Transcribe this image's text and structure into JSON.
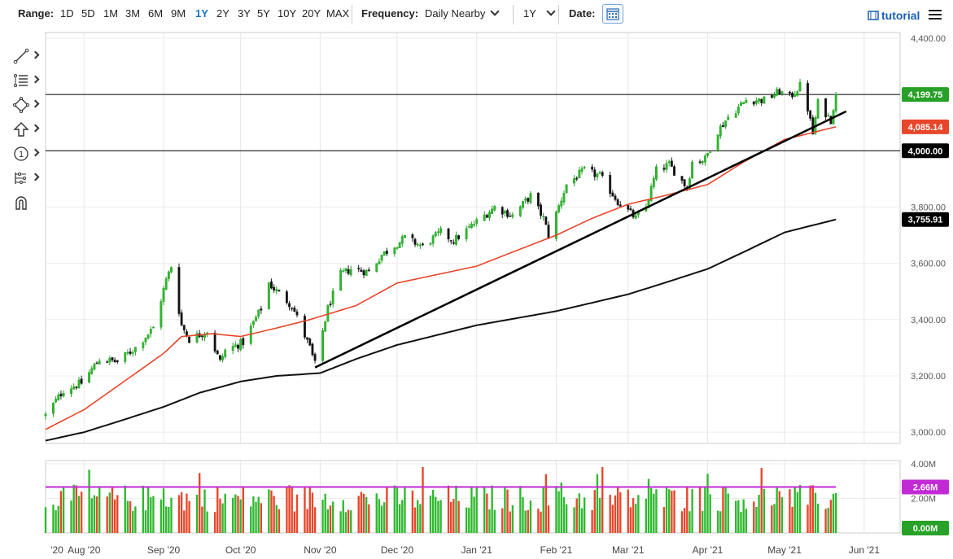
{
  "toolbar": {
    "range_label": "Range:",
    "ranges": [
      "1D",
      "5D",
      "1M",
      "3M",
      "6M",
      "9M",
      "1Y",
      "2Y",
      "3Y",
      "5Y",
      "10Y",
      "20Y",
      "MAX"
    ],
    "active_range": "1Y",
    "frequency_label": "Frequency:",
    "frequency_value": "Daily Nearby",
    "period_value": "1Y",
    "date_label": "Date:",
    "tutorial_label": "tutorial",
    "accent_color": "#1a73c8"
  },
  "tools": [
    "trend-line-icon",
    "fibonacci-icon",
    "shapes-icon",
    "arrow-up-icon",
    "annotation-icon",
    "measure-icon",
    "magnet-icon"
  ],
  "tool_annotation_digit": "1",
  "chart_data": {
    "type": "candlestick",
    "price_axis": {
      "ticks": [
        "3,000.00",
        "3,200.00",
        "3,400.00",
        "3,600.00",
        "3,800.00",
        "4,000.00",
        "4,200.00",
        "4,400.00"
      ],
      "range": [
        2960,
        4420
      ]
    },
    "volume_axis": {
      "ticks": [
        "4.00M",
        "2.00M"
      ],
      "range": [
        0,
        4.0
      ]
    },
    "x_labels": [
      "'20",
      "Aug '20",
      "Sep '20",
      "Oct '20",
      "Nov '20",
      "Dec '20",
      "Jan '21",
      "Feb '21",
      "Mar '21",
      "Apr '21",
      "May '21",
      "Jun '21"
    ],
    "date_range": [
      "2020-07-17",
      "2021-06-15"
    ],
    "last_date": "2021-05-21",
    "price_tags": [
      {
        "value": 4199.75,
        "label": "4,199.75",
        "color": "#27a127",
        "hline": true
      },
      {
        "value": 4085.14,
        "label": "4,085.14",
        "color": "#e8462a",
        "hline": false
      },
      {
        "value": 4000.0,
        "label": "4,000.00",
        "color": "#000000",
        "hline": true
      },
      {
        "value": 3755.91,
        "label": "3,755.91",
        "color": "#000000",
        "hline": false
      }
    ],
    "volume_tags": [
      {
        "value": 2.66,
        "label": "2.66M",
        "color": "#c22ad6"
      },
      {
        "value": 0.0,
        "label": "0.00M",
        "color": "#27a127"
      }
    ],
    "trendline": {
      "from": {
        "date": "2020-10-30",
        "price": 3230
      },
      "to": {
        "date": "2021-05-25",
        "price": 4140
      }
    },
    "price_key_points": [
      [
        "2020-07-17",
        3060
      ],
      [
        "2020-07-24",
        3150
      ],
      [
        "2020-07-31",
        3175
      ],
      [
        "2020-08-07",
        3260
      ],
      [
        "2020-08-14",
        3250
      ],
      [
        "2020-08-21",
        3300
      ],
      [
        "2020-08-28",
        3370
      ],
      [
        "2020-09-02",
        3540
      ],
      [
        "2020-09-04",
        3590
      ],
      [
        "2020-09-08",
        3380
      ],
      [
        "2020-09-11",
        3330
      ],
      [
        "2020-09-18",
        3360
      ],
      [
        "2020-09-23",
        3250
      ],
      [
        "2020-09-25",
        3290
      ],
      [
        "2020-10-02",
        3320
      ],
      [
        "2020-10-09",
        3440
      ],
      [
        "2020-10-12",
        3530
      ],
      [
        "2020-10-14",
        3510
      ],
      [
        "2020-10-21",
        3450
      ],
      [
        "2020-10-28",
        3300
      ],
      [
        "2020-10-30",
        3240
      ],
      [
        "2020-11-04",
        3440
      ],
      [
        "2020-11-09",
        3560
      ],
      [
        "2020-11-13",
        3580
      ],
      [
        "2020-11-20",
        3570
      ],
      [
        "2020-11-25",
        3630
      ],
      [
        "2020-12-04",
        3690
      ],
      [
        "2020-12-11",
        3660
      ],
      [
        "2020-12-18",
        3710
      ],
      [
        "2020-12-23",
        3680
      ],
      [
        "2020-12-31",
        3740
      ],
      [
        "2021-01-08",
        3800
      ],
      [
        "2021-01-15",
        3770
      ],
      [
        "2021-01-22",
        3840
      ],
      [
        "2021-01-27",
        3760
      ],
      [
        "2021-01-29",
        3700
      ],
      [
        "2021-02-05",
        3880
      ],
      [
        "2021-02-12",
        3930
      ],
      [
        "2021-02-18",
        3910
      ],
      [
        "2021-02-25",
        3820
      ],
      [
        "2021-03-04",
        3760
      ],
      [
        "2021-03-08",
        3800
      ],
      [
        "2021-03-12",
        3930
      ],
      [
        "2021-03-17",
        3950
      ],
      [
        "2021-03-24",
        3870
      ],
      [
        "2021-03-26",
        3960
      ],
      [
        "2021-03-31",
        3970
      ],
      [
        "2021-04-05",
        4070
      ],
      [
        "2021-04-09",
        4120
      ],
      [
        "2021-04-16",
        4180
      ],
      [
        "2021-04-23",
        4180
      ],
      [
        "2021-04-29",
        4210
      ],
      [
        "2021-05-03",
        4190
      ],
      [
        "2021-05-07",
        4230
      ],
      [
        "2021-05-10",
        4150
      ],
      [
        "2021-05-12",
        4060
      ],
      [
        "2021-05-14",
        4170
      ],
      [
        "2021-05-19",
        4110
      ],
      [
        "2021-05-21",
        4199.75
      ]
    ],
    "ma50_key_points": [
      [
        "2020-07-17",
        3010
      ],
      [
        "2020-08-01",
        3080
      ],
      [
        "2020-08-15",
        3170
      ],
      [
        "2020-09-01",
        3280
      ],
      [
        "2020-09-08",
        3340
      ],
      [
        "2020-09-20",
        3350
      ],
      [
        "2020-10-01",
        3340
      ],
      [
        "2020-10-15",
        3370
      ],
      [
        "2020-10-28",
        3400
      ],
      [
        "2020-11-15",
        3450
      ],
      [
        "2020-12-01",
        3530
      ],
      [
        "2021-01-01",
        3590
      ],
      [
        "2021-01-15",
        3640
      ],
      [
        "2021-02-01",
        3700
      ],
      [
        "2021-02-15",
        3760
      ],
      [
        "2021-03-01",
        3810
      ],
      [
        "2021-03-15",
        3840
      ],
      [
        "2021-04-01",
        3880
      ],
      [
        "2021-04-15",
        3960
      ],
      [
        "2021-05-01",
        4040
      ],
      [
        "2021-05-21",
        4085.14
      ]
    ],
    "ma200_key_points": [
      [
        "2020-07-17",
        2970
      ],
      [
        "2020-08-01",
        3000
      ],
      [
        "2020-08-15",
        3040
      ],
      [
        "2020-09-01",
        3090
      ],
      [
        "2020-09-15",
        3140
      ],
      [
        "2020-10-01",
        3180
      ],
      [
        "2020-10-15",
        3200
      ],
      [
        "2020-11-01",
        3210
      ],
      [
        "2020-11-15",
        3260
      ],
      [
        "2020-12-01",
        3310
      ],
      [
        "2021-01-01",
        3380
      ],
      [
        "2021-02-01",
        3430
      ],
      [
        "2021-03-01",
        3490
      ],
      [
        "2021-03-15",
        3530
      ],
      [
        "2021-04-01",
        3580
      ],
      [
        "2021-04-15",
        3640
      ],
      [
        "2021-05-01",
        3710
      ],
      [
        "2021-05-21",
        3755.91
      ]
    ],
    "volume_avg": 2.66
  }
}
